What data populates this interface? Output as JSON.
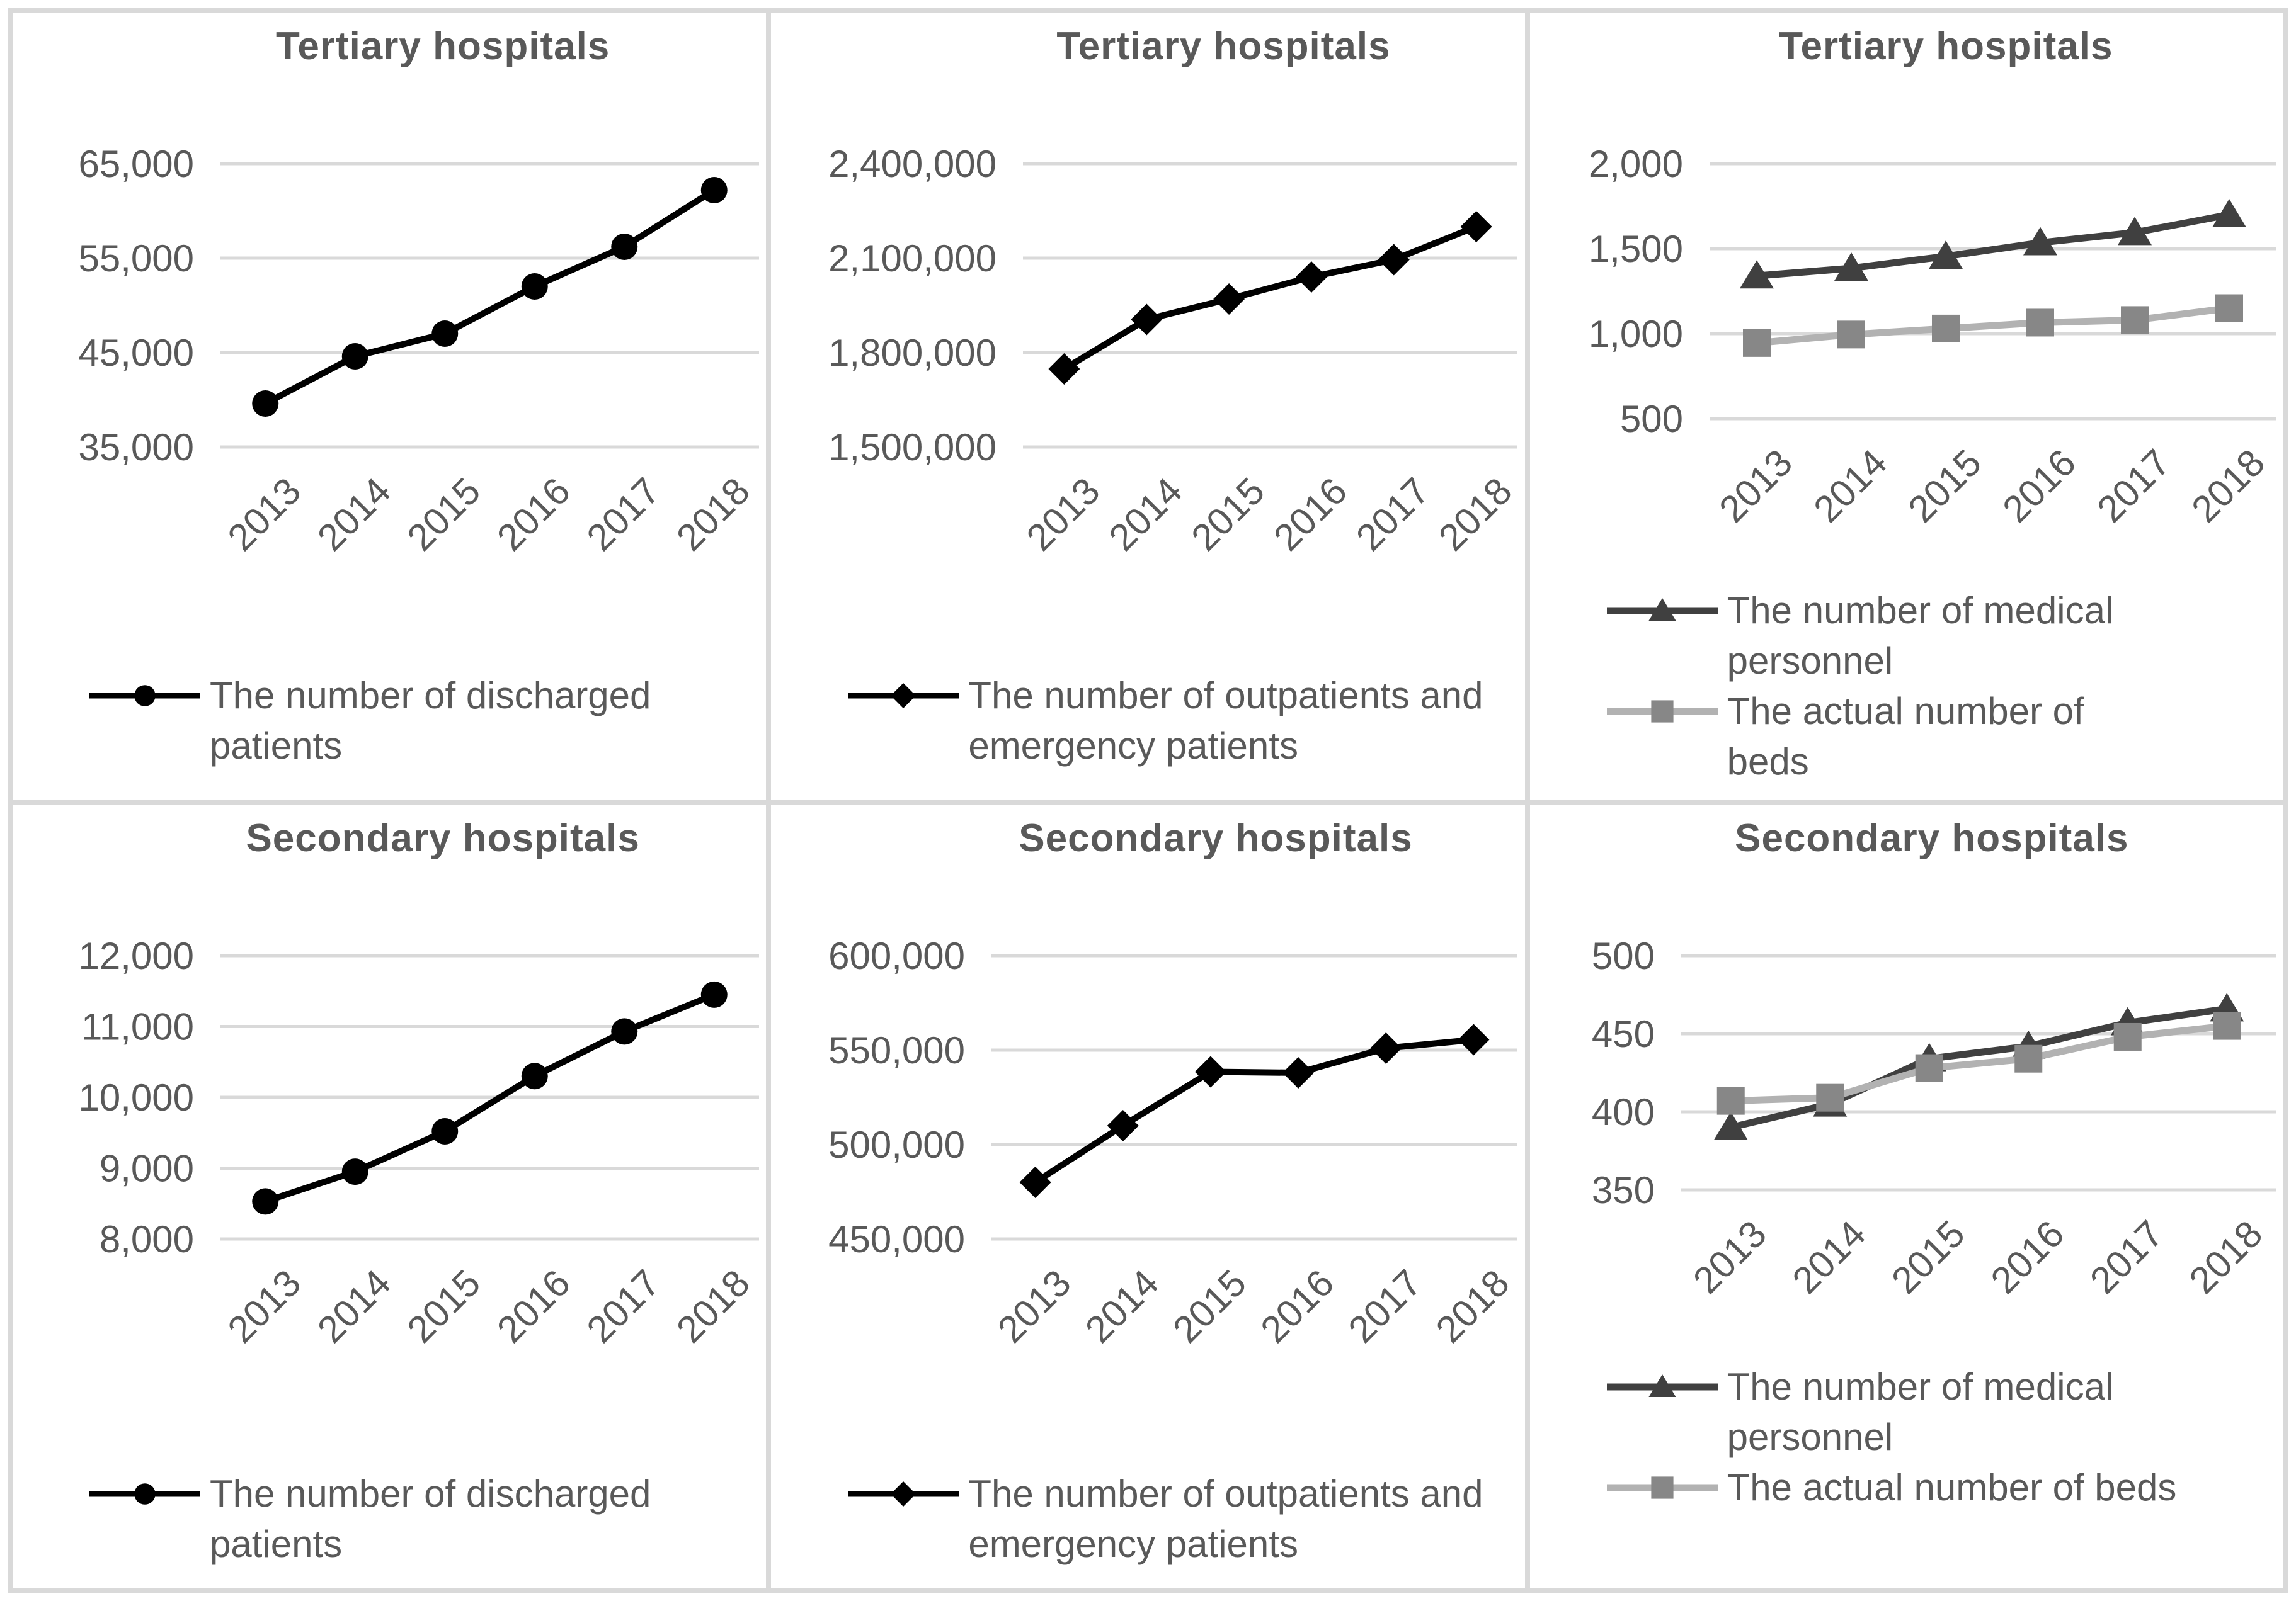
{
  "colors": {
    "text": "#595959",
    "gridline": "#D9D9D9",
    "panel_border": "#D9D9D9",
    "primary_series": "#000000",
    "personnel_series": "#404040",
    "beds_line": "#B2B2B2",
    "beds_marker": "#878787"
  },
  "chart_data": [
    {
      "type": "line",
      "title": "Tertiary hospitals",
      "categories": [
        "2013",
        "2014",
        "2015",
        "2016",
        "2017",
        "2018"
      ],
      "yticks": [
        {
          "value": 65000,
          "label": "65,000"
        },
        {
          "value": 55000,
          "label": "55,000"
        },
        {
          "value": 45000,
          "label": "45,000"
        },
        {
          "value": 35000,
          "label": "35,000"
        }
      ],
      "ylim": [
        35000,
        65000
      ],
      "grid": true,
      "legend_position": "bottom-left",
      "series": [
        {
          "name": "The number of discharged patients",
          "marker": "circle",
          "line_color": "#000000",
          "marker_color": "#000000",
          "values": [
            39600,
            44600,
            47000,
            52000,
            56200,
            62200
          ]
        }
      ]
    },
    {
      "type": "line",
      "title": "Tertiary hospitals",
      "categories": [
        "2013",
        "2014",
        "2015",
        "2016",
        "2017",
        "2018"
      ],
      "yticks": [
        {
          "value": 2400000,
          "label": "2,400,000"
        },
        {
          "value": 2100000,
          "label": "2,100,000"
        },
        {
          "value": 1800000,
          "label": "1,800,000"
        },
        {
          "value": 1500000,
          "label": "1,500,000"
        }
      ],
      "ylim": [
        1500000,
        2400000
      ],
      "grid": true,
      "legend_position": "bottom-left",
      "series": [
        {
          "name": "The number of outpatients and emergency patients",
          "marker": "diamond",
          "line_color": "#000000",
          "marker_color": "#000000",
          "values": [
            1748000,
            1905000,
            1970000,
            2040000,
            2095000,
            2200000
          ]
        }
      ]
    },
    {
      "type": "line",
      "title": "Tertiary hospitals",
      "categories": [
        "2013",
        "2014",
        "2015",
        "2016",
        "2017",
        "2018"
      ],
      "yticks": [
        {
          "value": 2000,
          "label": "2,000"
        },
        {
          "value": 1500,
          "label": "1,500"
        },
        {
          "value": 1000,
          "label": "1,000"
        },
        {
          "value": 500,
          "label": "500"
        }
      ],
      "ylim": [
        500,
        2000
      ],
      "grid": true,
      "legend_position": "bottom-left",
      "series": [
        {
          "name": "The number of medical personnel",
          "marker": "triangle",
          "line_color": "#404040",
          "marker_color": "#404040",
          "values": [
            1340,
            1385,
            1455,
            1535,
            1595,
            1700
          ]
        },
        {
          "name": "The actual number of beds",
          "marker": "square",
          "line_color": "#B2B2B2",
          "marker_color": "#878787",
          "values": [
            945,
            995,
            1030,
            1065,
            1080,
            1150
          ]
        }
      ]
    },
    {
      "type": "line",
      "title": "Secondary hospitals",
      "categories": [
        "2013",
        "2014",
        "2015",
        "2016",
        "2017",
        "2018"
      ],
      "yticks": [
        {
          "value": 12000,
          "label": "12,000"
        },
        {
          "value": 11000,
          "label": "11,000"
        },
        {
          "value": 10000,
          "label": "10,000"
        },
        {
          "value": 9000,
          "label": "9,000"
        },
        {
          "value": 8000,
          "label": "8,000"
        }
      ],
      "ylim": [
        8000,
        12000
      ],
      "grid": true,
      "legend_position": "bottom-left",
      "series": [
        {
          "name": "The number of discharged patients",
          "marker": "circle",
          "line_color": "#000000",
          "marker_color": "#000000",
          "values": [
            8530,
            8950,
            9520,
            10300,
            10930,
            11450
          ]
        }
      ]
    },
    {
      "type": "line",
      "title": "Secondary hospitals",
      "categories": [
        "2013",
        "2014",
        "2015",
        "2016",
        "2017",
        "2018"
      ],
      "yticks": [
        {
          "value": 600000,
          "label": "600,000"
        },
        {
          "value": 550000,
          "label": "550,000"
        },
        {
          "value": 500000,
          "label": "500,000"
        },
        {
          "value": 450000,
          "label": "450,000"
        }
      ],
      "ylim": [
        450000,
        600000
      ],
      "grid": true,
      "legend_position": "bottom-left",
      "series": [
        {
          "name": "The number of outpatients and emergency patients",
          "marker": "diamond",
          "line_color": "#000000",
          "marker_color": "#000000",
          "values": [
            480000,
            510000,
            538500,
            538000,
            551000,
            555500
          ]
        }
      ]
    },
    {
      "type": "line",
      "title": "Secondary hospitals",
      "categories": [
        "2013",
        "2014",
        "2015",
        "2016",
        "2017",
        "2018"
      ],
      "yticks": [
        {
          "value": 500,
          "label": "500"
        },
        {
          "value": 450,
          "label": "450"
        },
        {
          "value": 400,
          "label": "400"
        },
        {
          "value": 350,
          "label": "350"
        }
      ],
      "ylim": [
        350,
        500
      ],
      "grid": true,
      "legend_position": "bottom-left",
      "series": [
        {
          "name": "The number of medical personnel",
          "marker": "triangle",
          "line_color": "#404040",
          "marker_color": "#404040",
          "values": [
            390,
            405,
            434,
            442,
            457,
            466
          ]
        },
        {
          "name": "The actual number of beds",
          "marker": "square",
          "line_color": "#B2B2B2",
          "marker_color": "#878787",
          "values": [
            407,
            409,
            428,
            434,
            448,
            455
          ]
        }
      ]
    }
  ]
}
